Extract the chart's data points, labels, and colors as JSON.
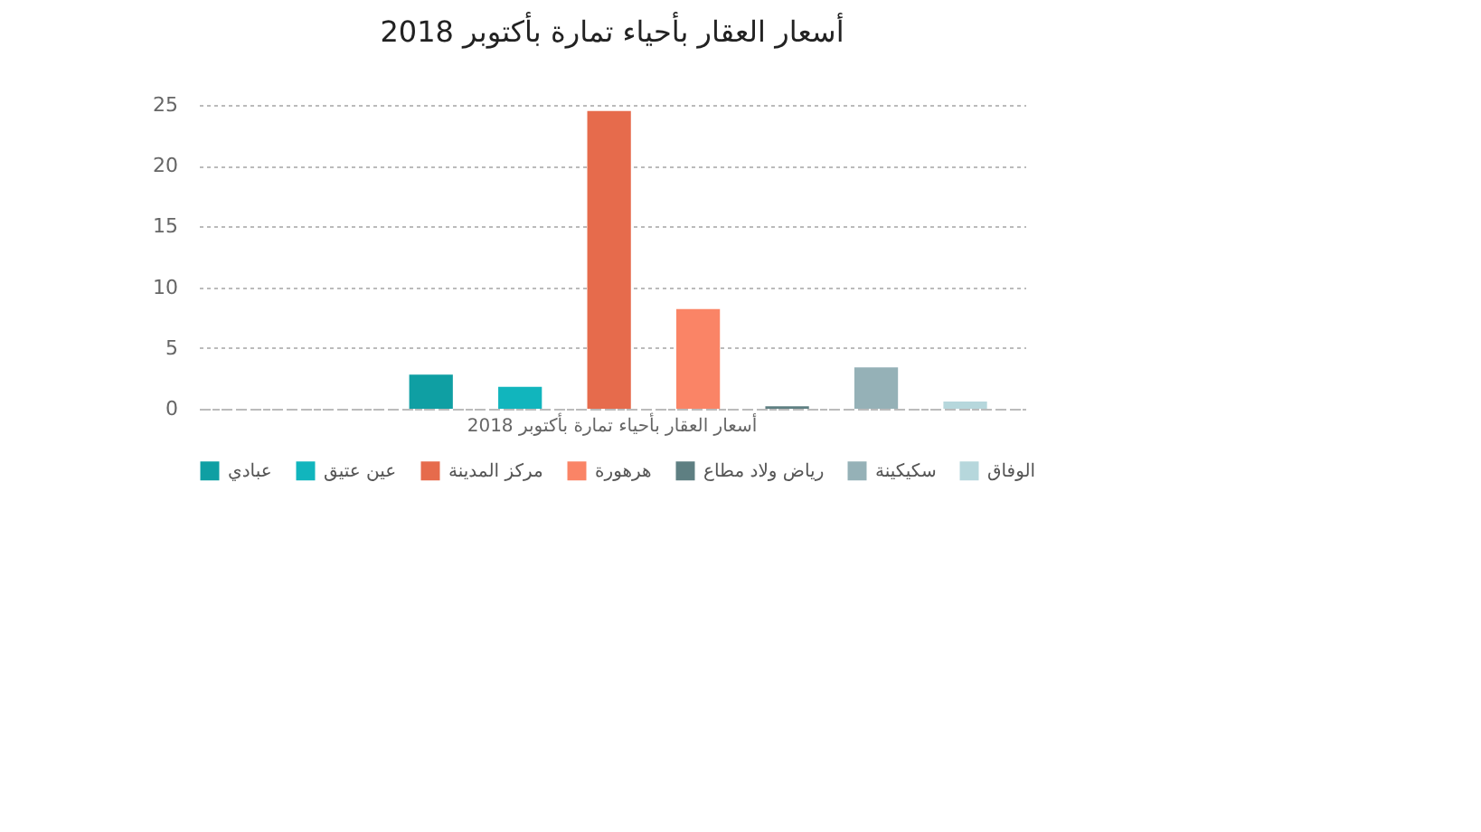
{
  "chart_data": {
    "type": "bar",
    "title": "أسعار العقار بأحياء تمارة بأكتوبر 2018",
    "categories": [
      "أسعار العقار بأحياء تمارة بأكتوبر 2018"
    ],
    "series": [
      {
        "name": "عبادي",
        "color": "#0f9fa3",
        "values": [
          2.8
        ]
      },
      {
        "name": "عين عتيق",
        "color": "#11b5bd",
        "values": [
          1.8
        ]
      },
      {
        "name": "مركز المدينة",
        "color": "#e66b4c",
        "values": [
          24.5
        ]
      },
      {
        "name": "هرهورة",
        "color": "#fa8466",
        "values": [
          8.2
        ]
      },
      {
        "name": "رياض ولاد مطاع",
        "color": "#5e7f82",
        "values": [
          0.2
        ]
      },
      {
        "name": "سكيكينة",
        "color": "#95b1b7",
        "values": [
          3.4
        ]
      },
      {
        "name": "الوفاق",
        "color": "#b6d7dc",
        "values": [
          0.6
        ]
      }
    ],
    "ylim": [
      0,
      25
    ],
    "yticks": [
      0,
      5,
      10,
      15,
      20,
      25
    ],
    "grid": "y",
    "legend": "bottom left"
  }
}
